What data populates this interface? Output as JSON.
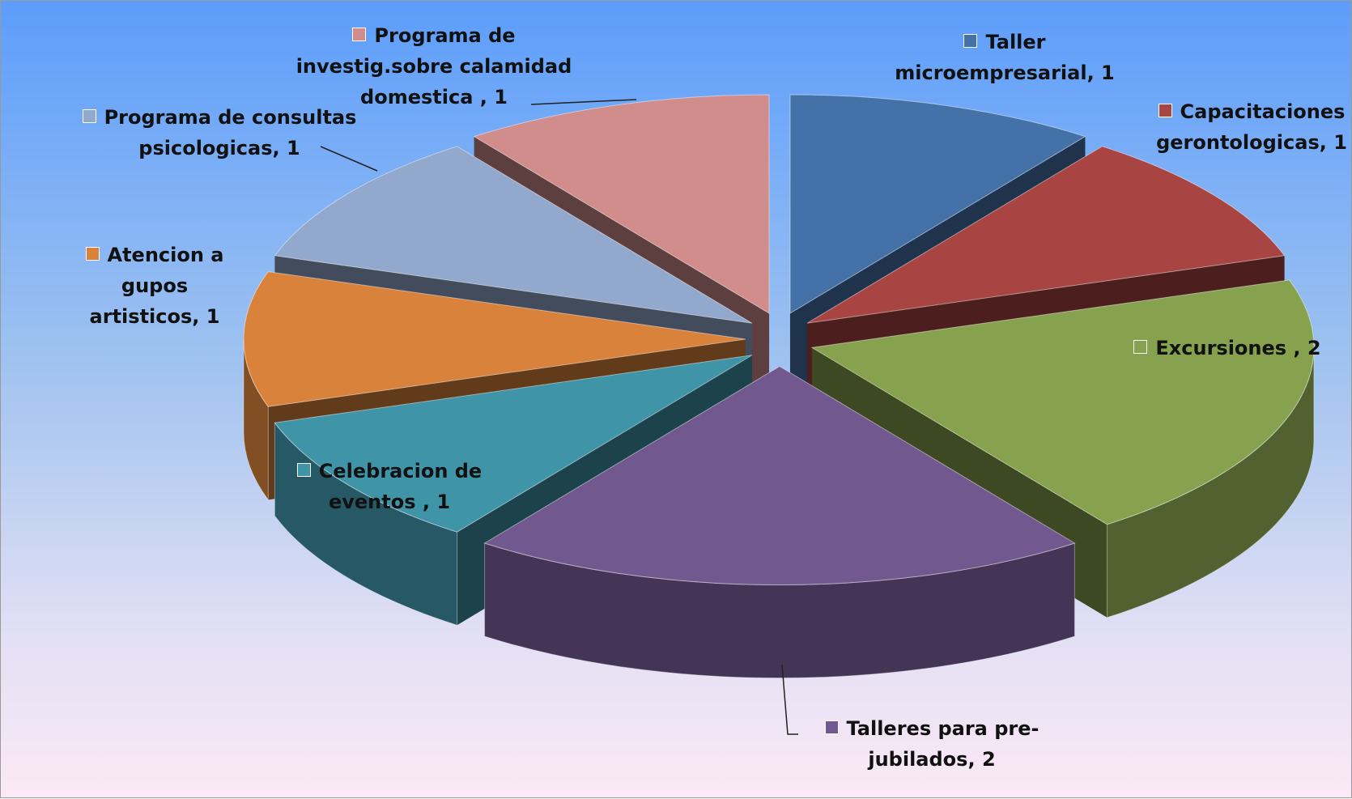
{
  "chart_data": {
    "type": "pie",
    "categories": [
      "Taller microempresarial,",
      "Capacitaciones gerontologicas,",
      "Excursiones ,",
      "Talleres para pre-jubilados,",
      "Celebracion de eventos ,",
      "Atencion a gupos artisticos,",
      "Programa de consultas psicologicas,",
      "Programa de investig.sobre calamidad domestica ,"
    ],
    "values": [
      1,
      1,
      2,
      2,
      1,
      1,
      1,
      1
    ],
    "colors": [
      "#4472a8",
      "#a84442",
      "#87a24e",
      "#71588f",
      "#3f94a8",
      "#d9823b",
      "#93a8cd",
      "#d08d8c"
    ]
  }
}
